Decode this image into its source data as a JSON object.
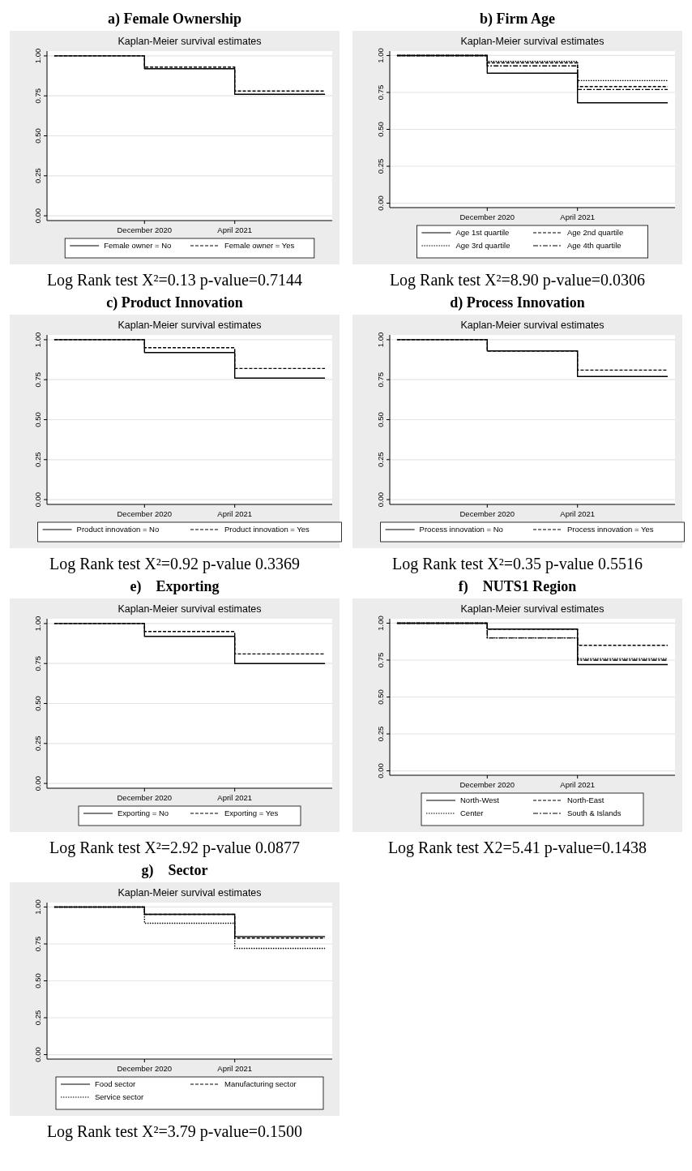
{
  "chart_data": [
    {
      "type": "step",
      "title": "a) Female Ownership",
      "subtitle": "Kaplan-Meier survival estimates",
      "categories": [
        null,
        "December 2020",
        "April 2021",
        null
      ],
      "ylim": [
        -0.03,
        1.03
      ],
      "yticks": [
        {
          "value": 0,
          "label": "0.00"
        },
        {
          "value": 0.25,
          "label": "0.25"
        },
        {
          "value": 0.5,
          "label": "0.50"
        },
        {
          "value": 0.75,
          "label": "0.75"
        },
        {
          "value": 1,
          "label": "1.00"
        }
      ],
      "grid": "y",
      "legend": "bottom",
      "annotations": [
        "Log Rank test X²=0.13 p-value=0.7144"
      ],
      "series": [
        {
          "name": "Female owner = No",
          "color": "#000000",
          "line_style": "solid",
          "values": [
            1,
            0.92,
            0.76,
            0.76
          ]
        },
        {
          "name": "Female owner = Yes",
          "color": "#000000",
          "line_style": "dashed",
          "values": [
            1,
            0.93,
            0.78,
            0.78
          ]
        }
      ]
    },
    {
      "type": "step",
      "title": "b) Firm Age",
      "subtitle": "Kaplan-Meier survival estimates",
      "categories": [
        null,
        "December 2020",
        "April 2021",
        null
      ],
      "ylim": [
        -0.03,
        1.03
      ],
      "yticks": [
        {
          "value": 0,
          "label": "0.00"
        },
        {
          "value": 0.25,
          "label": "0.25"
        },
        {
          "value": 0.5,
          "label": "0.50"
        },
        {
          "value": 0.75,
          "label": "0.75"
        },
        {
          "value": 1,
          "label": "1.00"
        }
      ],
      "grid": "y",
      "legend": "bottom",
      "annotations": [
        "Log Rank test X²=8.90 p-value=0.0306"
      ],
      "series": [
        {
          "name": "Age 1st quartile",
          "color": "#000000",
          "line_style": "solid",
          "values": [
            1,
            0.88,
            0.68,
            0.68
          ]
        },
        {
          "name": "Age 2nd quartile",
          "color": "#000000",
          "line_style": "dashed",
          "values": [
            1,
            0.95,
            0.79,
            0.79
          ]
        },
        {
          "name": "Age 3rd quartile",
          "color": "#000000",
          "line_style": "dotted",
          "values": [
            1,
            0.96,
            0.83,
            0.83
          ]
        },
        {
          "name": "Age 4th quartile",
          "color": "#000000",
          "line_style": "dashdot",
          "values": [
            1,
            0.93,
            0.77,
            0.77
          ]
        }
      ]
    },
    {
      "type": "step",
      "title": "c) Product Innovation",
      "subtitle": "Kaplan-Meier survival estimates",
      "categories": [
        null,
        "December 2020",
        "April 2021",
        null
      ],
      "ylim": [
        -0.03,
        1.03
      ],
      "yticks": [
        {
          "value": 0,
          "label": "0.00"
        },
        {
          "value": 0.25,
          "label": "0.25"
        },
        {
          "value": 0.5,
          "label": "0.50"
        },
        {
          "value": 0.75,
          "label": "0.75"
        },
        {
          "value": 1,
          "label": "1.00"
        }
      ],
      "grid": "y",
      "legend": "bottom",
      "annotations": [
        "Log Rank test X²=0.92 p-value 0.3369"
      ],
      "series": [
        {
          "name": "Product innovation = No",
          "color": "#000000",
          "line_style": "solid",
          "values": [
            1,
            0.92,
            0.76,
            0.76
          ]
        },
        {
          "name": "Product innovation = Yes",
          "color": "#000000",
          "line_style": "dashed",
          "values": [
            1,
            0.95,
            0.82,
            0.82
          ]
        }
      ]
    },
    {
      "type": "step",
      "title": "d) Process Innovation",
      "subtitle": "Kaplan-Meier survival estimates",
      "categories": [
        null,
        "December 2020",
        "April 2021",
        null
      ],
      "ylim": [
        -0.03,
        1.03
      ],
      "yticks": [
        {
          "value": 0,
          "label": "0.00"
        },
        {
          "value": 0.25,
          "label": "0.25"
        },
        {
          "value": 0.5,
          "label": "0.50"
        },
        {
          "value": 0.75,
          "label": "0.75"
        },
        {
          "value": 1,
          "label": "1.00"
        }
      ],
      "grid": "y",
      "legend": "bottom",
      "annotations": [
        "Log Rank test X²=0.35 p-value 0.5516"
      ],
      "series": [
        {
          "name": "Process innovation = No",
          "color": "#000000",
          "line_style": "solid",
          "values": [
            1,
            0.93,
            0.77,
            0.77
          ]
        },
        {
          "name": "Process innovation = Yes",
          "color": "#000000",
          "line_style": "dashed",
          "values": [
            1,
            0.93,
            0.81,
            0.81
          ]
        }
      ]
    },
    {
      "type": "step",
      "title": "e)    Exporting",
      "subtitle": "Kaplan-Meier survival estimates",
      "categories": [
        null,
        "December 2020",
        "April 2021",
        null
      ],
      "ylim": [
        -0.03,
        1.03
      ],
      "yticks": [
        {
          "value": 0,
          "label": "0.00"
        },
        {
          "value": 0.25,
          "label": "0.25"
        },
        {
          "value": 0.5,
          "label": "0.50"
        },
        {
          "value": 0.75,
          "label": "0.75"
        },
        {
          "value": 1,
          "label": "1.00"
        }
      ],
      "grid": "y",
      "legend": "bottom",
      "annotations": [
        "Log Rank test X²=2.92 p-value 0.0877"
      ],
      "series": [
        {
          "name": "Exporting = No",
          "color": "#000000",
          "line_style": "solid",
          "values": [
            1,
            0.92,
            0.75,
            0.75
          ]
        },
        {
          "name": "Exporting = Yes",
          "color": "#000000",
          "line_style": "dashed",
          "values": [
            1,
            0.95,
            0.81,
            0.81
          ]
        }
      ]
    },
    {
      "type": "step",
      "title": "f)    NUTS1 Region",
      "subtitle": "Kaplan-Meier survival estimates",
      "categories": [
        null,
        "December 2020",
        "April 2021",
        null
      ],
      "ylim": [
        -0.03,
        1.03
      ],
      "yticks": [
        {
          "value": 0,
          "label": "0.00"
        },
        {
          "value": 0.25,
          "label": "0.25"
        },
        {
          "value": 0.5,
          "label": "0.50"
        },
        {
          "value": 0.75,
          "label": "0.75"
        },
        {
          "value": 1,
          "label": "1.00"
        }
      ],
      "grid": "y",
      "legend": "bottom",
      "annotations": [
        "Log Rank test X2=5.41 p-value=0.1438"
      ],
      "series": [
        {
          "name": "North-West",
          "color": "#000000",
          "line_style": "solid",
          "values": [
            1,
            0.96,
            0.72,
            0.72
          ]
        },
        {
          "name": "North-East",
          "color": "#000000",
          "line_style": "dashed",
          "values": [
            1,
            0.96,
            0.85,
            0.85
          ]
        },
        {
          "name": "Center",
          "color": "#000000",
          "line_style": "dotted",
          "values": [
            1,
            0.9,
            0.76,
            0.76
          ]
        },
        {
          "name": "South & Islands",
          "color": "#000000",
          "line_style": "dashdot",
          "values": [
            1,
            0.9,
            0.75,
            0.75
          ]
        }
      ]
    },
    {
      "type": "step",
      "title": "g)    Sector",
      "subtitle": "Kaplan-Meier survival estimates",
      "categories": [
        null,
        "December 2020",
        "April 2021",
        null
      ],
      "ylim": [
        -0.03,
        1.03
      ],
      "yticks": [
        {
          "value": 0,
          "label": "0.00"
        },
        {
          "value": 0.25,
          "label": "0.25"
        },
        {
          "value": 0.5,
          "label": "0.50"
        },
        {
          "value": 0.75,
          "label": "0.75"
        },
        {
          "value": 1,
          "label": "1.00"
        }
      ],
      "grid": "y",
      "legend": "bottom",
      "annotations": [
        "Log Rank test X²=3.79 p-value=0.1500"
      ],
      "series": [
        {
          "name": "Food sector",
          "color": "#000000",
          "line_style": "solid",
          "values": [
            1,
            0.95,
            0.8,
            0.8
          ]
        },
        {
          "name": "Manufacturing sector",
          "color": "#000000",
          "line_style": "dashed",
          "values": [
            1,
            0.95,
            0.79,
            0.79
          ]
        },
        {
          "name": "Service sector",
          "color": "#000000",
          "line_style": "dotted",
          "values": [
            1,
            0.89,
            0.72,
            0.72
          ]
        }
      ]
    }
  ]
}
